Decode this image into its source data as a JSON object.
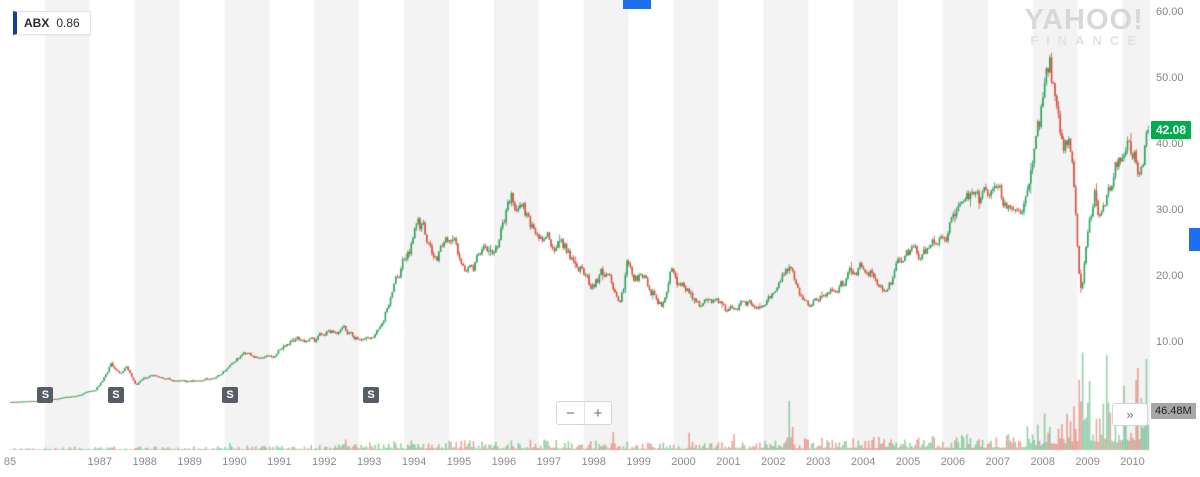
{
  "ticker": {
    "symbol": "ABX",
    "change": "0.86"
  },
  "watermark": {
    "line1": "YAHOO!",
    "line2": "FINANCE"
  },
  "badges": {
    "last_price": "42.08",
    "volume": "46.48M"
  },
  "controls": {
    "zoom_out": "−",
    "zoom_in": "+",
    "expand": "»"
  },
  "split_marker_label": "S",
  "axes": {
    "y_labels": [
      {
        "text": "60.00",
        "value": 60
      },
      {
        "text": "50.00",
        "value": 50
      },
      {
        "text": "40.00",
        "value": 40
      },
      {
        "text": "30.00",
        "value": 30
      },
      {
        "text": "20.00",
        "value": 20
      },
      {
        "text": "10.00",
        "value": 10
      }
    ],
    "x_labels": [
      {
        "text": "85",
        "year": 1985
      },
      {
        "text": "1987",
        "year": 1987
      },
      {
        "text": "1988",
        "year": 1988
      },
      {
        "text": "1989",
        "year": 1989
      },
      {
        "text": "1990",
        "year": 1990
      },
      {
        "text": "1991",
        "year": 1991
      },
      {
        "text": "1992",
        "year": 1992
      },
      {
        "text": "1993",
        "year": 1993
      },
      {
        "text": "1994",
        "year": 1994
      },
      {
        "text": "1995",
        "year": 1995
      },
      {
        "text": "1996",
        "year": 1996
      },
      {
        "text": "1997",
        "year": 1997
      },
      {
        "text": "1998",
        "year": 1998
      },
      {
        "text": "1999",
        "year": 1999
      },
      {
        "text": "2000",
        "year": 2000
      },
      {
        "text": "2001",
        "year": 2001
      },
      {
        "text": "2002",
        "year": 2002
      },
      {
        "text": "2003",
        "year": 2003
      },
      {
        "text": "2004",
        "year": 2004
      },
      {
        "text": "2005",
        "year": 2005
      },
      {
        "text": "2006",
        "year": 2006
      },
      {
        "text": "2007",
        "year": 2007
      },
      {
        "text": "2008",
        "year": 2008
      },
      {
        "text": "2009",
        "year": 2009
      },
      {
        "text": "2010",
        "year": 2010
      }
    ]
  },
  "colors": {
    "up": "#2ba35c",
    "down": "#db4e3c",
    "stripe": "#f3f3f3",
    "badge_green": "#00ad4e",
    "badge_gray": "#a7a7a7",
    "accent_blue": "#1b6ff0",
    "split_marker_bg": "#565d66",
    "axis_text": "#8c8c8c"
  },
  "chart_data": {
    "type": "candlestick",
    "title": "ABX (Barrick Gold) price history with volume, 1985–2010 — Yahoo Finance interactive chart",
    "x_range": [
      1985.02,
      2010.35
    ],
    "ylim": [
      0,
      62
    ],
    "y_ticks": [
      10,
      20,
      30,
      40,
      50,
      60
    ],
    "last_price": 42.08,
    "grid": "alternating-year-bands",
    "legend_position": "none",
    "split_marker_years": [
      1985.79,
      1987.36,
      1989.9,
      1993.04
    ],
    "price_anchors": [
      [
        1985.02,
        0.9
      ],
      [
        1985.5,
        1.0
      ],
      [
        1986.0,
        1.3
      ],
      [
        1986.5,
        1.8
      ],
      [
        1986.9,
        2.7
      ],
      [
        1987.1,
        4.5
      ],
      [
        1987.25,
        6.8
      ],
      [
        1987.45,
        5.4
      ],
      [
        1987.6,
        6.1
      ],
      [
        1987.8,
        3.6
      ],
      [
        1988.0,
        4.5
      ],
      [
        1988.3,
        5.0
      ],
      [
        1988.6,
        4.3
      ],
      [
        1989.0,
        4.0
      ],
      [
        1989.4,
        4.4
      ],
      [
        1989.7,
        5.3
      ],
      [
        1990.0,
        7.2
      ],
      [
        1990.3,
        8.6
      ],
      [
        1990.6,
        7.6
      ],
      [
        1990.9,
        8.0
      ],
      [
        1991.2,
        9.8
      ],
      [
        1991.5,
        10.4
      ],
      [
        1991.8,
        9.9
      ],
      [
        1992.0,
        11.2
      ],
      [
        1992.4,
        12.6
      ],
      [
        1992.7,
        11.0
      ],
      [
        1992.9,
        10.3
      ],
      [
        1993.1,
        11.5
      ],
      [
        1993.3,
        14.0
      ],
      [
        1993.5,
        17.5
      ],
      [
        1993.7,
        21.0
      ],
      [
        1993.9,
        24.5
      ],
      [
        1994.05,
        29.0
      ],
      [
        1994.2,
        27.0
      ],
      [
        1994.45,
        22.5
      ],
      [
        1994.7,
        24.5
      ],
      [
        1994.9,
        24.0
      ],
      [
        1995.1,
        22.0
      ],
      [
        1995.3,
        21.5
      ],
      [
        1995.6,
        24.0
      ],
      [
        1995.9,
        25.5
      ],
      [
        1996.05,
        28.5
      ],
      [
        1996.15,
        31.5
      ],
      [
        1996.35,
        29.5
      ],
      [
        1996.6,
        27.5
      ],
      [
        1996.9,
        27.8
      ],
      [
        1997.1,
        26.5
      ],
      [
        1997.4,
        24.0
      ],
      [
        1997.7,
        21.5
      ],
      [
        1997.95,
        17.8
      ],
      [
        1998.15,
        20.0
      ],
      [
        1998.4,
        18.5
      ],
      [
        1998.6,
        16.2
      ],
      [
        1998.75,
        21.5
      ],
      [
        1998.9,
        19.5
      ],
      [
        1999.1,
        20.0
      ],
      [
        1999.3,
        18.0
      ],
      [
        1999.55,
        16.3
      ],
      [
        1999.75,
        21.5
      ],
      [
        1999.9,
        18.5
      ],
      [
        2000.1,
        17.0
      ],
      [
        2000.4,
        16.0
      ],
      [
        2000.7,
        15.2
      ],
      [
        2000.95,
        14.6
      ],
      [
        2001.2,
        16.2
      ],
      [
        2001.5,
        15.2
      ],
      [
        2001.8,
        15.8
      ],
      [
        2002.1,
        18.0
      ],
      [
        2002.35,
        20.8
      ],
      [
        2002.6,
        17.0
      ],
      [
        2002.85,
        15.6
      ],
      [
        2003.1,
        16.3
      ],
      [
        2003.4,
        17.8
      ],
      [
        2003.7,
        19.5
      ],
      [
        2003.95,
        22.3
      ],
      [
        2004.2,
        21.0
      ],
      [
        2004.5,
        19.8
      ],
      [
        2004.8,
        22.0
      ],
      [
        2005.0,
        23.8
      ],
      [
        2005.3,
        22.8
      ],
      [
        2005.6,
        25.0
      ],
      [
        2005.9,
        27.3
      ],
      [
        2006.1,
        30.0
      ],
      [
        2006.35,
        32.0
      ],
      [
        2006.6,
        29.3
      ],
      [
        2006.9,
        30.8
      ],
      [
        2007.1,
        29.5
      ],
      [
        2007.4,
        28.3
      ],
      [
        2007.7,
        33.5
      ],
      [
        2007.95,
        41.0
      ],
      [
        2008.1,
        50.5
      ],
      [
        2008.17,
        52.8
      ],
      [
        2008.3,
        44.5
      ],
      [
        2008.45,
        40.0
      ],
      [
        2008.58,
        43.0
      ],
      [
        2008.7,
        33.0
      ],
      [
        2008.82,
        20.5
      ],
      [
        2008.88,
        18.3
      ],
      [
        2009.0,
        28.5
      ],
      [
        2009.15,
        33.5
      ],
      [
        2009.3,
        28.8
      ],
      [
        2009.5,
        33.5
      ],
      [
        2009.65,
        36.5
      ],
      [
        2009.8,
        40.5
      ],
      [
        2009.9,
        41.5
      ],
      [
        2010.0,
        39.0
      ],
      [
        2010.12,
        36.5
      ],
      [
        2010.25,
        39.5
      ],
      [
        2010.35,
        42.08
      ]
    ],
    "volume_anchors_millions": [
      [
        1985.02,
        1.5
      ],
      [
        1987,
        3
      ],
      [
        1988,
        2.5
      ],
      [
        1990,
        3
      ],
      [
        1992,
        4
      ],
      [
        1993,
        6
      ],
      [
        1994,
        7
      ],
      [
        1996,
        8
      ],
      [
        1998,
        7
      ],
      [
        2000,
        6
      ],
      [
        2002.3,
        8
      ],
      [
        2002.4,
        80
      ],
      [
        2002.5,
        9
      ],
      [
        2004,
        10
      ],
      [
        2006,
        12
      ],
      [
        2007.5,
        15
      ],
      [
        2008.0,
        28
      ],
      [
        2008.6,
        42
      ],
      [
        2008.9,
        65
      ],
      [
        2009.2,
        52
      ],
      [
        2009.6,
        45
      ],
      [
        2010.0,
        55
      ],
      [
        2010.2,
        68
      ],
      [
        2010.35,
        55
      ]
    ]
  }
}
